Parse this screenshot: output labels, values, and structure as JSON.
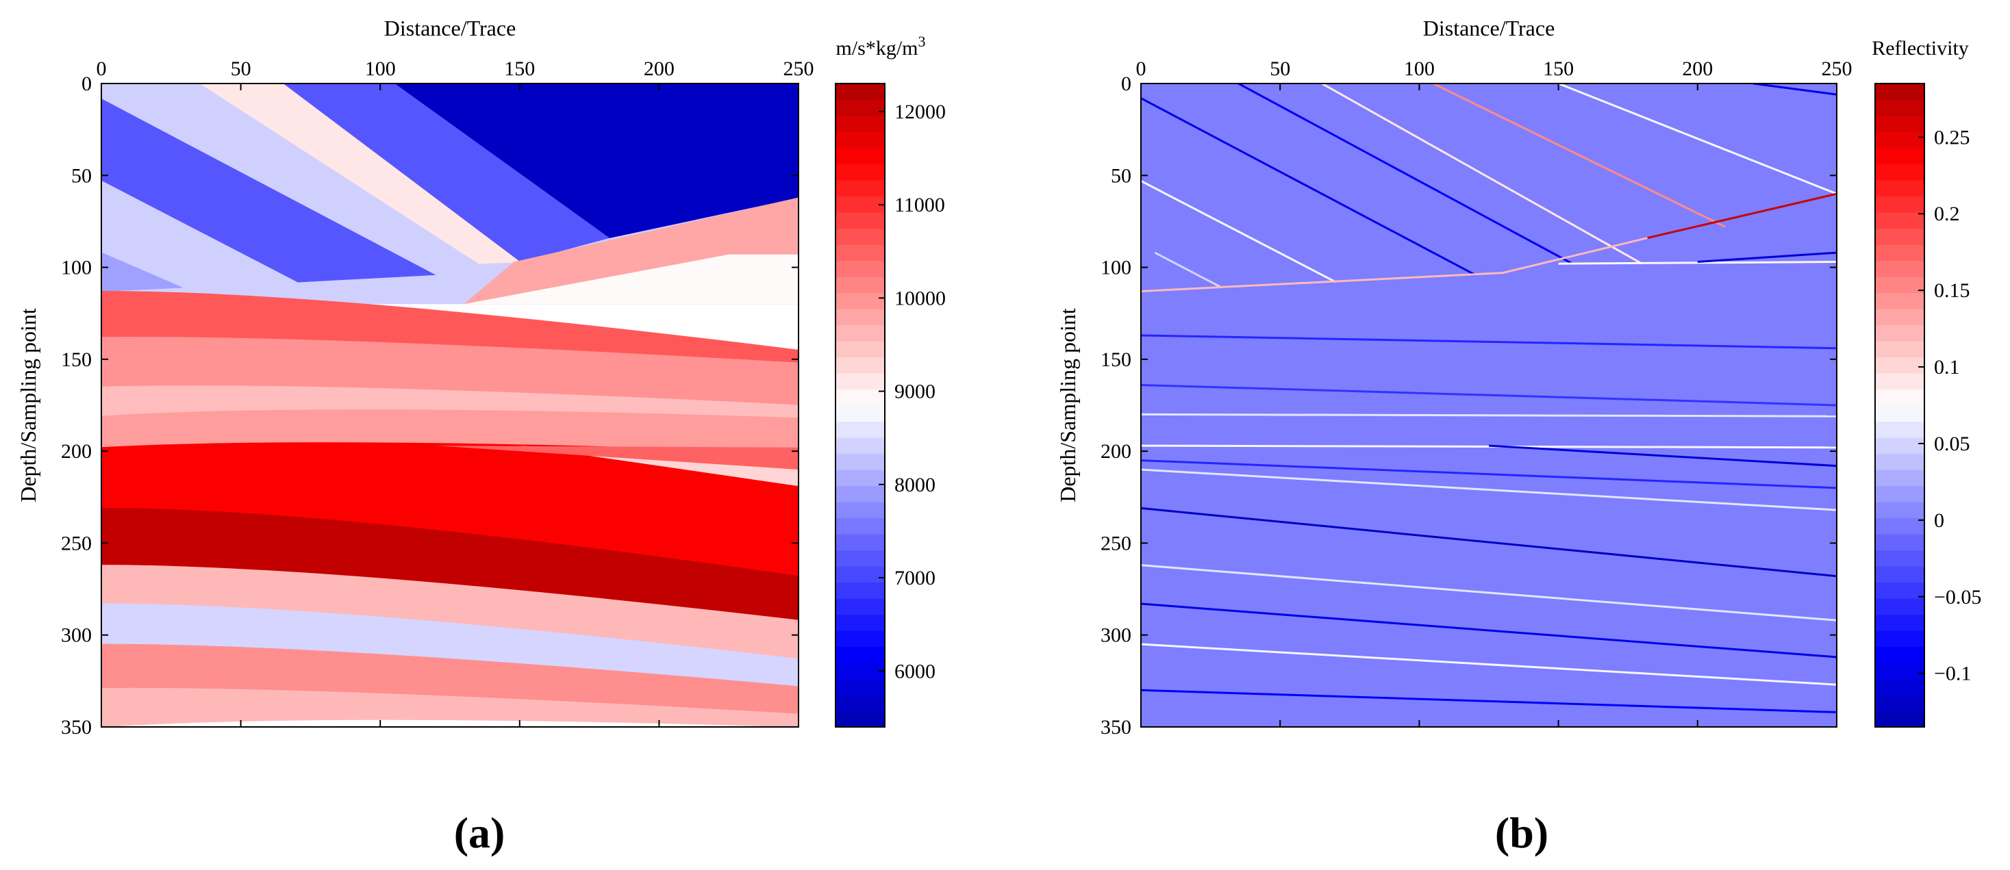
{
  "figure": {
    "panel_labels": [
      "(a)",
      "(b)"
    ]
  },
  "chart_data": [
    {
      "id": "impedance",
      "type": "heatmap",
      "title": "",
      "xlabel": "Distance/Trace",
      "ylabel": "Depth/Sampling point",
      "xlim": [
        0,
        250
      ],
      "ylim": [
        0,
        350
      ],
      "x_ticks": [
        0,
        50,
        100,
        150,
        200,
        250
      ],
      "y_ticks": [
        0,
        50,
        100,
        150,
        200,
        250,
        300,
        350
      ],
      "colorbar": {
        "label_prefix": "m/s*kg/m",
        "label_sup": "3",
        "range": [
          5400,
          12300
        ],
        "ticks": [
          6000,
          7000,
          8000,
          9000,
          10000,
          11000,
          12000
        ],
        "tick_labels": [
          "6000",
          "7000",
          "8000",
          "9000",
          "10000",
          "11000",
          "12000"
        ]
      },
      "upper_layers": [
        {
          "name": "U1",
          "value": 8400,
          "top": [
            0,
            0,
            0,
            0
          ]
        },
        {
          "name": "U2",
          "value": 9100,
          "top": [
            45,
            0,
            0,
            0
          ]
        },
        {
          "name": "U3",
          "value": 7200,
          "top": [
            70,
            0,
            0,
            0
          ]
        },
        {
          "name": "U4",
          "value": 5600,
          "top": [
            150,
            0,
            0,
            0
          ]
        },
        {
          "name": "U5",
          "value": 8400,
          "top": [
            0,
            0,
            8,
            38
          ]
        },
        {
          "name": "U6",
          "value": 7700,
          "top": [
            0,
            0,
            52,
            155
          ]
        },
        {
          "name": "U7",
          "value": 8500,
          "top": [
            0,
            0,
            80,
            233
          ]
        },
        {
          "name": "U8",
          "value": 7950,
          "top": [
            0,
            0,
            94,
            266
          ]
        }
      ],
      "lower_layers": [
        {
          "name": "L1",
          "value": 10600,
          "top": [
            0,
            113,
            250,
            145
          ]
        },
        {
          "name": "L2",
          "value": 10000,
          "top": [
            0,
            138,
            250,
            152
          ]
        },
        {
          "name": "L3",
          "value": 9550,
          "top": [
            0,
            165,
            250,
            175
          ]
        },
        {
          "name": "L4",
          "value": 9900,
          "top": [
            0,
            181,
            250,
            182
          ]
        },
        {
          "name": "L5",
          "value": 11500,
          "top": [
            0,
            198,
            250,
            201
          ]
        },
        {
          "name": "L6",
          "value": 12100,
          "top": [
            0,
            231,
            250,
            268
          ]
        },
        {
          "name": "L7",
          "value": 9600,
          "top": [
            0,
            262,
            250,
            292
          ]
        },
        {
          "name": "L8",
          "value": 8450,
          "top": [
            0,
            283,
            250,
            313
          ]
        },
        {
          "name": "L9",
          "value": 10050,
          "top": [
            0,
            305,
            250,
            328
          ]
        },
        {
          "name": "L10",
          "value": 9600,
          "top": [
            0,
            329,
            250,
            343
          ]
        }
      ],
      "fault_rise_layers": [
        {
          "name": "F1",
          "value": 9800,
          "from": [
            148,
            97
          ],
          "to": [
            250,
            62
          ]
        },
        {
          "name": "F2",
          "value": 8900,
          "from": [
            225,
            93
          ],
          "to": [
            250,
            93
          ]
        }
      ],
      "wedge_layers": [
        {
          "name": "W1",
          "value": 9300,
          "from": [
            150,
            197
          ],
          "to": [
            250,
            219
          ]
        },
        {
          "name": "W2",
          "value": 10500,
          "from": [
            120,
            197
          ],
          "to": [
            250,
            210
          ]
        }
      ]
    },
    {
      "id": "reflectivity",
      "type": "heatmap",
      "title": "",
      "xlabel": "Distance/Trace",
      "ylabel": "Depth/Sampling point",
      "xlim": [
        0,
        250
      ],
      "ylim": [
        0,
        350
      ],
      "x_ticks": [
        0,
        50,
        100,
        150,
        200,
        250
      ],
      "y_ticks": [
        0,
        50,
        100,
        150,
        200,
        250,
        300,
        350
      ],
      "background_value": 0.0,
      "colorbar": {
        "label_prefix": "Reflectivity",
        "label_sup": "",
        "range": [
          -0.135,
          0.285
        ],
        "ticks": [
          -0.1,
          -0.05,
          0,
          0.05,
          0.1,
          0.15,
          0.2,
          0.25
        ],
        "tick_labels": [
          "−0.1",
          "−0.05",
          "0",
          "0.05",
          "0.1",
          "0.15",
          "0.2",
          "0.25"
        ]
      },
      "reflector_lines": [
        {
          "value": -0.1,
          "points": [
            [
              0,
              8
            ],
            [
              120,
              104
            ]
          ]
        },
        {
          "value": 0.07,
          "points": [
            [
              0,
              53
            ],
            [
              70,
              108
            ]
          ]
        },
        {
          "value": 0.05,
          "points": [
            [
              5,
              92
            ],
            [
              29,
              111
            ]
          ]
        },
        {
          "value": -0.09,
          "points": [
            [
              35,
              0
            ],
            [
              155,
              98
            ]
          ]
        },
        {
          "value": 0.09,
          "points": [
            [
              65,
              0
            ],
            [
              180,
              98
            ]
          ]
        },
        {
          "value": 0.15,
          "points": [
            [
              105,
              0
            ],
            [
              210,
              78
            ]
          ]
        },
        {
          "value": 0.07,
          "points": [
            [
              150,
              0
            ],
            [
              250,
              60
            ]
          ]
        },
        {
          "value": -0.1,
          "points": [
            [
              220,
              0
            ],
            [
              250,
              6
            ]
          ]
        },
        {
          "value": 0.12,
          "points": [
            [
              0,
              113
            ],
            [
              130,
              103
            ],
            [
              182,
              84
            ]
          ]
        },
        {
          "value": 0.27,
          "points": [
            [
              182,
              84
            ],
            [
              250,
              60
            ]
          ]
        },
        {
          "value": 0.08,
          "points": [
            [
              150,
              98
            ],
            [
              250,
              97
            ]
          ]
        },
        {
          "value": -0.11,
          "points": [
            [
              200,
              97
            ],
            [
              250,
              92
            ]
          ]
        },
        {
          "value": -0.06,
          "points": [
            [
              0,
              137
            ],
            [
              250,
              144
            ]
          ]
        },
        {
          "value": -0.05,
          "points": [
            [
              0,
              164
            ],
            [
              250,
              175
            ]
          ]
        },
        {
          "value": 0.06,
          "points": [
            [
              0,
              180
            ],
            [
              250,
              181
            ]
          ]
        },
        {
          "value": 0.07,
          "points": [
            [
              0,
              197
            ],
            [
              250,
              198
            ]
          ]
        },
        {
          "value": -0.11,
          "points": [
            [
              125,
              197
            ],
            [
              250,
              208
            ]
          ]
        },
        {
          "value": -0.06,
          "points": [
            [
              0,
              205
            ],
            [
              250,
              220
            ]
          ]
        },
        {
          "value": 0.06,
          "points": [
            [
              0,
              210
            ],
            [
              250,
              232
            ]
          ]
        },
        {
          "value": -0.12,
          "points": [
            [
              0,
              231
            ],
            [
              250,
              268
            ]
          ]
        },
        {
          "value": 0.06,
          "points": [
            [
              0,
              262
            ],
            [
              250,
              292
            ]
          ]
        },
        {
          "value": -0.1,
          "points": [
            [
              0,
              283
            ],
            [
              250,
              312
            ]
          ]
        },
        {
          "value": 0.07,
          "points": [
            [
              0,
              305
            ],
            [
              250,
              327
            ]
          ]
        },
        {
          "value": -0.09,
          "points": [
            [
              0,
              330
            ],
            [
              250,
              342
            ]
          ]
        }
      ]
    }
  ]
}
